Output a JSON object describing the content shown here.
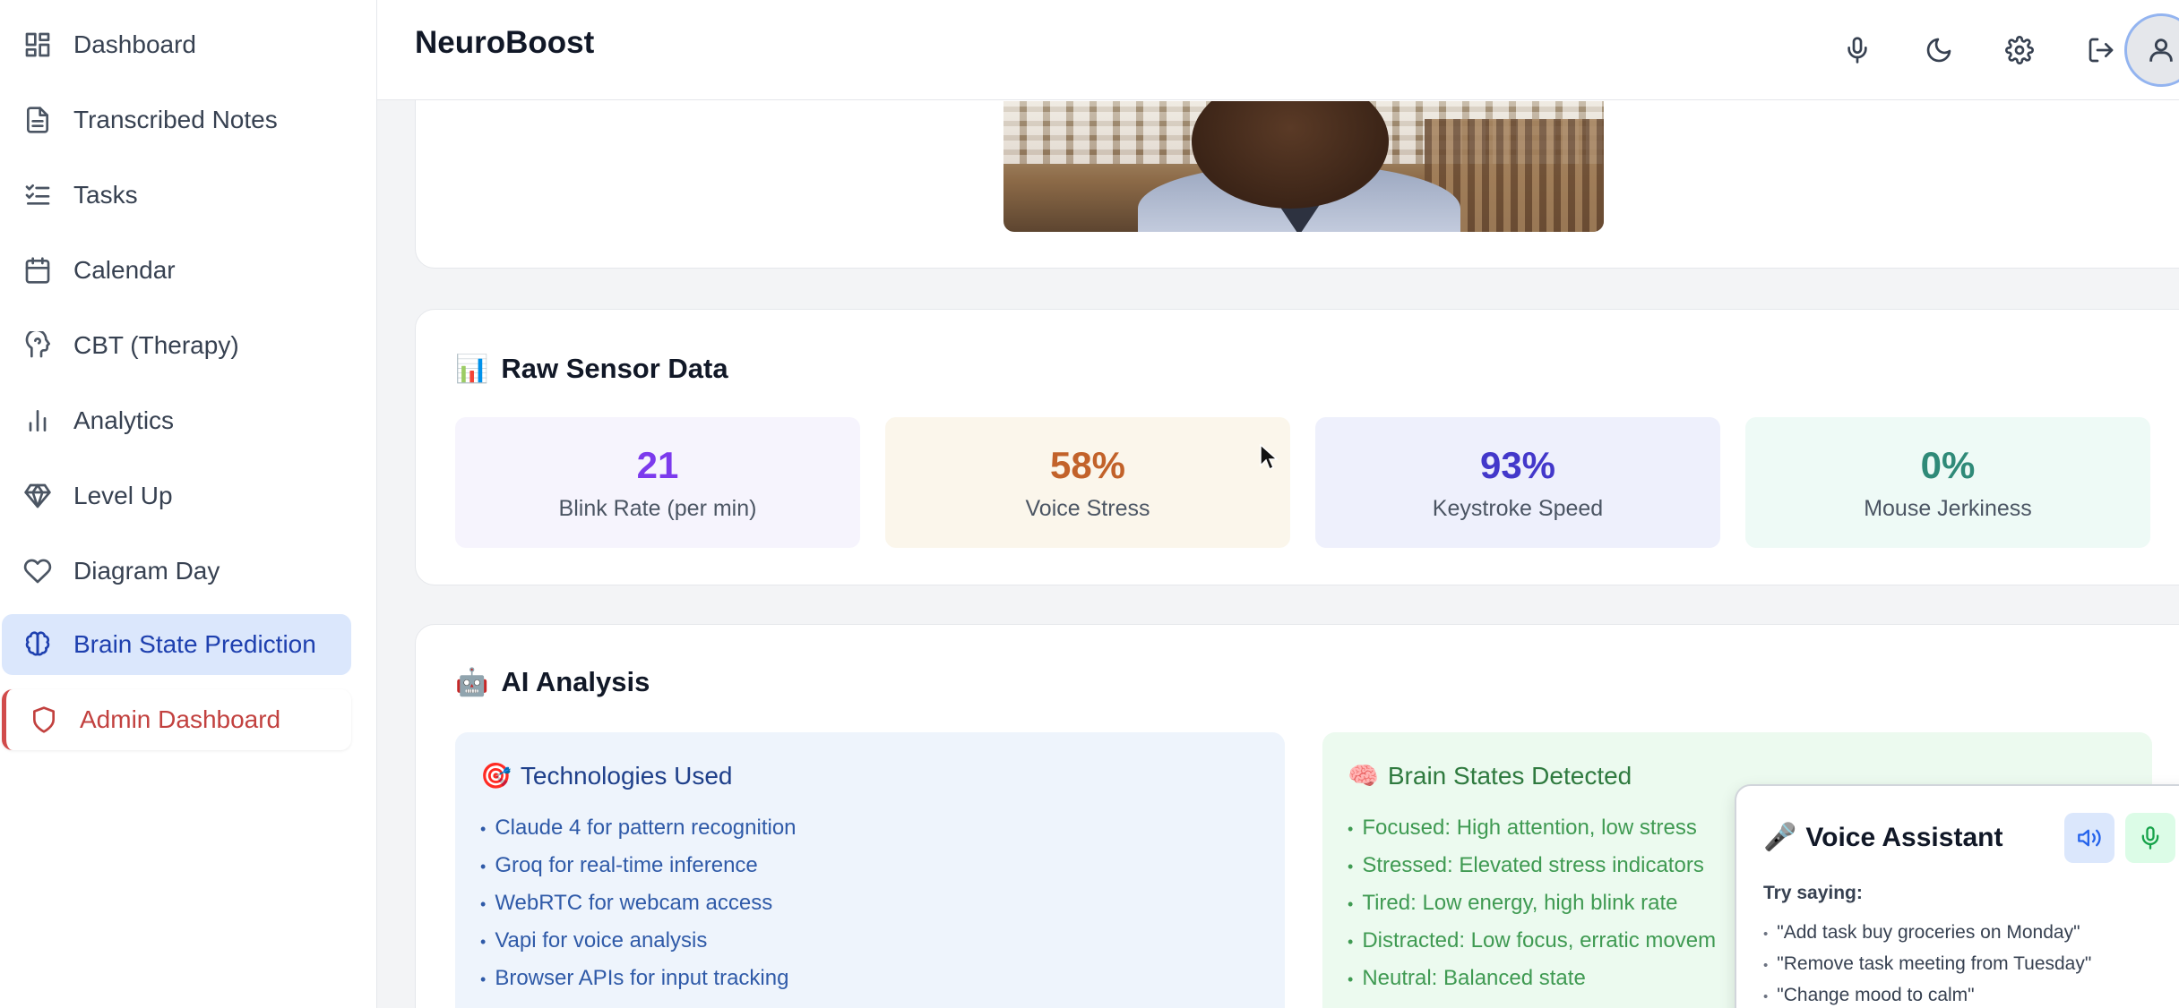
{
  "app": {
    "title": "NeuroBoost"
  },
  "sidebar": {
    "items": [
      {
        "label": "Dashboard",
        "icon": "dashboard-icon"
      },
      {
        "label": "Transcribed Notes",
        "icon": "document-icon"
      },
      {
        "label": "Tasks",
        "icon": "list-checks-icon"
      },
      {
        "label": "Calendar",
        "icon": "calendar-icon"
      },
      {
        "label": "CBT (Therapy)",
        "icon": "brain-head-icon"
      },
      {
        "label": "Analytics",
        "icon": "bar-chart-icon"
      },
      {
        "label": "Level Up",
        "icon": "gem-icon"
      },
      {
        "label": "Diagram Day",
        "icon": "heart-icon"
      },
      {
        "label": "Brain State Prediction",
        "icon": "brain-icon",
        "active": true
      },
      {
        "label": "Admin Dashboard",
        "icon": "shield-icon"
      }
    ]
  },
  "header": {
    "buttons": [
      "microphone-icon",
      "moon-icon",
      "gear-icon",
      "logout-icon",
      "user-icon"
    ]
  },
  "sensor": {
    "title": "Raw Sensor Data",
    "title_emoji": "📊",
    "metrics": [
      {
        "value": "21",
        "label": "Blink Rate (per min)",
        "color": "#7c3aed",
        "bg": "#f6f4fd"
      },
      {
        "value": "58%",
        "label": "Voice Stress",
        "color": "#c2622a",
        "bg": "#fbf6eb"
      },
      {
        "value": "93%",
        "label": "Keystroke Speed",
        "color": "#4338ca",
        "bg": "#eef0fc"
      },
      {
        "value": "0%",
        "label": "Mouse Jerkiness",
        "color": "#2f8a78",
        "bg": "#eefaf6"
      }
    ]
  },
  "ai": {
    "title": "AI Analysis",
    "title_emoji": "🤖",
    "tech": {
      "title": "Technologies Used",
      "emoji": "🎯",
      "items": [
        "Claude 4 for pattern recognition",
        "Groq for real-time inference",
        "WebRTC for webcam access",
        "Vapi for voice analysis",
        "Browser APIs for input tracking"
      ]
    },
    "brain": {
      "title": "Brain States Detected",
      "emoji": "🧠",
      "items": [
        "Focused: High attention, low stress",
        "Stressed: Elevated stress indicators",
        "Tired: Low energy, high blink rate",
        "Distracted: Low focus, erratic movem",
        "Neutral: Balanced state"
      ]
    }
  },
  "voice_assistant": {
    "title": "Voice Assistant",
    "emoji": "🎤",
    "try_label": "Try saying:",
    "examples": [
      "\"Add task buy groceries on Monday\"",
      "\"Remove task meeting from Tuesday\"",
      "\"Change mood to calm\""
    ]
  }
}
